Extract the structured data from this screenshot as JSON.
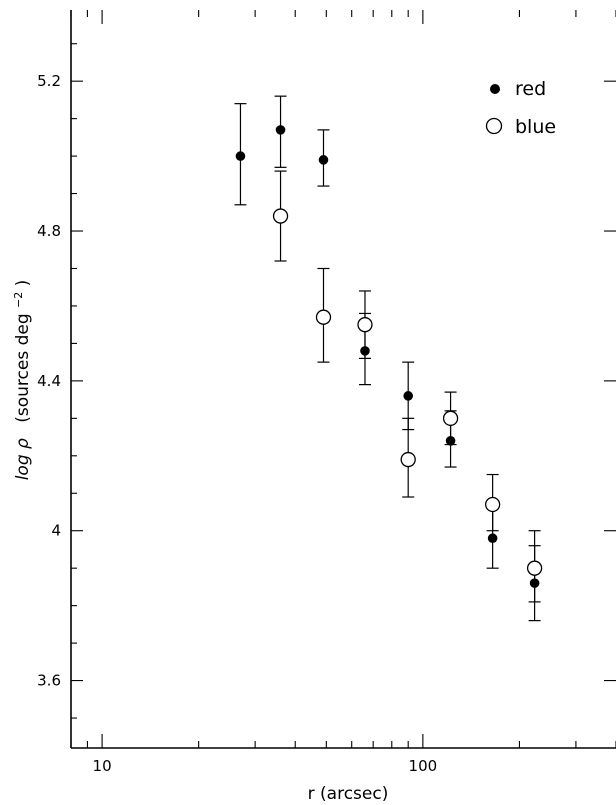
{
  "chart_data": {
    "type": "scatter",
    "xlabel": "r (arcsec)",
    "ylabel_main": "log ρ",
    "ylabel_paren_open": "(sources deg",
    "ylabel_sup": "−2",
    "ylabel_paren_close": ")",
    "xscale": "log",
    "xlim": [
      8,
      400
    ],
    "ylim": [
      3.42,
      5.39
    ],
    "x_tick_labels": [
      {
        "value": 10,
        "label": "10"
      },
      {
        "value": 100,
        "label": "100"
      }
    ],
    "y_tick_labels": [
      {
        "value": 3.6,
        "label": "3.6"
      },
      {
        "value": 4.0,
        "label": "4"
      },
      {
        "value": 4.4,
        "label": "4.4"
      },
      {
        "value": 4.8,
        "label": "4.8"
      },
      {
        "value": 5.2,
        "label": "5.2"
      }
    ],
    "legend_position": "top-right",
    "grid": false,
    "series": [
      {
        "name": "red",
        "marker": "filled-circle",
        "points": [
          {
            "x": 27,
            "y": 5.0,
            "lo": 4.87,
            "hi": 5.14
          },
          {
            "x": 36,
            "y": 5.07,
            "lo": 4.97,
            "hi": 5.16
          },
          {
            "x": 49,
            "y": 4.99,
            "lo": 4.92,
            "hi": 5.07
          },
          {
            "x": 66,
            "y": 4.48,
            "lo": 4.39,
            "hi": 4.58
          },
          {
            "x": 90,
            "y": 4.36,
            "lo": 4.27,
            "hi": 4.45
          },
          {
            "x": 122,
            "y": 4.24,
            "lo": 4.17,
            "hi": 4.32
          },
          {
            "x": 165,
            "y": 3.98,
            "lo": 3.9,
            "hi": 4.06
          },
          {
            "x": 223,
            "y": 3.86,
            "lo": 3.76,
            "hi": 3.96
          }
        ]
      },
      {
        "name": "blue",
        "marker": "open-circle",
        "points": [
          {
            "x": 36,
            "y": 4.84,
            "lo": 4.72,
            "hi": 4.96
          },
          {
            "x": 49,
            "y": 4.57,
            "lo": 4.45,
            "hi": 4.7
          },
          {
            "x": 66,
            "y": 4.55,
            "lo": 4.46,
            "hi": 4.64
          },
          {
            "x": 90,
            "y": 4.19,
            "lo": 4.09,
            "hi": 4.3
          },
          {
            "x": 122,
            "y": 4.3,
            "lo": 4.23,
            "hi": 4.37
          },
          {
            "x": 165,
            "y": 4.07,
            "lo": 4.0,
            "hi": 4.15
          },
          {
            "x": 223,
            "y": 3.9,
            "lo": 3.81,
            "hi": 4.0
          }
        ]
      }
    ]
  }
}
